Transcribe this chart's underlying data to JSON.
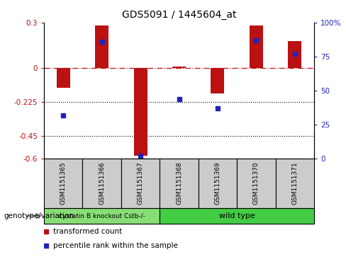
{
  "title": "GDS5091 / 1445604_at",
  "samples": [
    "GSM1151365",
    "GSM1151366",
    "GSM1151367",
    "GSM1151368",
    "GSM1151369",
    "GSM1151370",
    "GSM1151371"
  ],
  "red_values": [
    -0.13,
    0.28,
    -0.58,
    0.01,
    -0.17,
    0.28,
    0.18
  ],
  "blue_pct": [
    32,
    86,
    2,
    44,
    37,
    87,
    77
  ],
  "ylim_left": [
    -0.6,
    0.3
  ],
  "ylim_right": [
    0,
    100
  ],
  "yticks_left": [
    0.3,
    0,
    -0.225,
    -0.45,
    -0.6
  ],
  "yticks_right": [
    100,
    75,
    50,
    25,
    0
  ],
  "ytick_labels_left": [
    "0.3",
    "0",
    "-0.225",
    "-0.45",
    "-0.6"
  ],
  "ytick_labels_right": [
    "100%",
    "75",
    "50",
    "25",
    "0"
  ],
  "hlines": [
    -0.225,
    -0.45
  ],
  "zero_line": 0,
  "bar_color": "#bb1111",
  "dot_color": "#2222bb",
  "group1_samples": [
    0,
    1,
    2
  ],
  "group2_samples": [
    3,
    4,
    5,
    6
  ],
  "group1_label": "cystatin B knockout Cstb-/-",
  "group2_label": "wild type",
  "group1_color": "#88dd77",
  "group2_color": "#44cc44",
  "legend_labels": [
    "transformed count",
    "percentile rank within the sample"
  ],
  "genotype_label": "genotype/variation",
  "bar_width": 0.35,
  "figsize": [
    4.88,
    3.63
  ],
  "dpi": 100,
  "sample_box_color": "#cccccc",
  "arrow_color": "#888888"
}
